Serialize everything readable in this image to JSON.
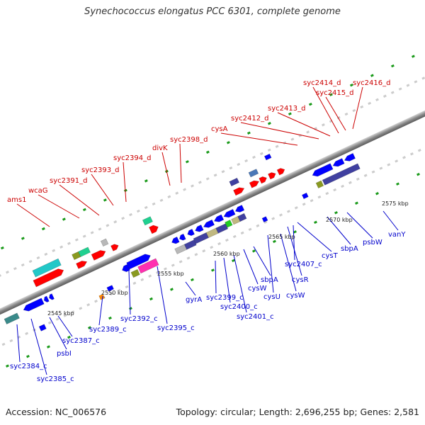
{
  "title": "Synechococcus elongatus PCC 6301, complete genome",
  "footer": {
    "accession": "Accession: NC_006576",
    "topology": "Topology: circular; Length: 2,696,255 bp; Genes: 2,581"
  },
  "colors": {
    "top_strand_label": "#cc0000",
    "bottom_strand_label": "#0000cc",
    "forward_feature": "#ff0000",
    "reverse_feature": "#0000ff",
    "cds_note": "tick marks green and grey dotted tracks"
  },
  "scale_ticks": [
    "2545 kbp",
    "2550 kbp",
    "2555 kbp",
    "2560 kbp",
    "2565 kbp",
    "2570 kbp",
    "2575 kbp"
  ],
  "top_labels": [
    "ams1",
    "wcaG",
    "syc2391_d",
    "syc2393_d",
    "syc2394_d",
    "divK",
    "syc2398_d",
    "cysA",
    "syc2412_d",
    "syc2413_d",
    "syc2414_d",
    "syc2415_d",
    "syc2416_d"
  ],
  "bottom_labels": [
    "syc2384_c",
    "syc2385_c",
    "psbI",
    "syc2387_c",
    "syc2389_c",
    "syc2392_c",
    "syc2395_c",
    "gyrA",
    "syc2399_c",
    "syc2400_c",
    "syc2401_c",
    "cysW",
    "sbpA",
    "cysU",
    "cysW",
    "cysR",
    "syc2407_c",
    "cysT",
    "sbpA",
    "psbW",
    "vanY"
  ]
}
